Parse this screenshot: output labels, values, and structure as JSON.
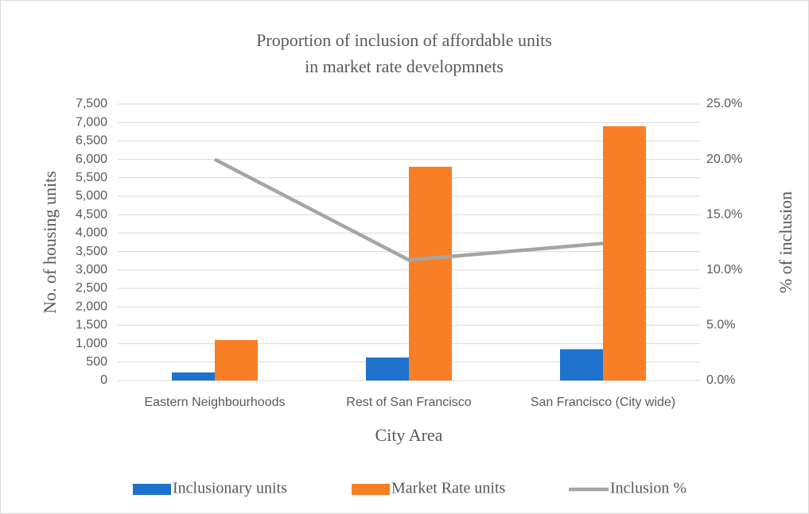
{
  "chart_data": {
    "type": "bar",
    "title": [
      "Proportion of inclusion of affordable units",
      "in market rate developmnets"
    ],
    "x_label": "City Area",
    "y_label": "No. of housing units",
    "y2_label": "% of inclusion",
    "categories": [
      "Eastern Neighbourhoods",
      "Rest of San Francisco",
      "San Francisco (City  wide)"
    ],
    "series": [
      {
        "name": "Inclusionary units",
        "color": "#1f72cc",
        "type": "bar",
        "values": [
          220,
          625,
          850
        ]
      },
      {
        "name": "Market Rate units",
        "color": "#f97f27",
        "type": "bar",
        "values": [
          1100,
          5800,
          6900
        ]
      },
      {
        "name": "Inclusion %",
        "color": "#a5a5a5",
        "type": "line",
        "axis": "y2",
        "values": [
          20.0,
          10.9,
          12.4
        ]
      }
    ],
    "ylim": [
      0,
      7500
    ],
    "yticks": [
      0,
      500,
      {
        "value": 1000,
        "label": "1,000"
      },
      {
        "value": 1500,
        "label": "1,500"
      },
      {
        "value": 2000,
        "label": "2,000"
      },
      {
        "value": 2500,
        "label": "2,500"
      },
      {
        "value": 3000,
        "label": "3,000"
      },
      {
        "value": 3500,
        "label": "3,500"
      },
      {
        "value": 4000,
        "label": "4,000"
      },
      {
        "value": 4500,
        "label": "4,500"
      },
      {
        "value": 5000,
        "label": "5,000"
      },
      {
        "value": 5500,
        "label": "5,500"
      },
      {
        "value": 6000,
        "label": "6,000"
      },
      {
        "value": 6500,
        "label": "6,500"
      },
      {
        "value": 7000,
        "label": "7,000"
      },
      {
        "value": 7500,
        "label": "7,500"
      }
    ],
    "y2lim": [
      0,
      25
    ],
    "y2ticks": [
      {
        "value": 0,
        "label": "0.0%"
      },
      {
        "value": 5,
        "label": "5.0%"
      },
      {
        "value": 10,
        "label": "10.0%"
      },
      {
        "value": 15,
        "label": "15.0%"
      },
      {
        "value": 20,
        "label": "20.0%"
      },
      {
        "value": 25,
        "label": "25.0%"
      }
    ],
    "grid": true,
    "legend": "bottom"
  }
}
